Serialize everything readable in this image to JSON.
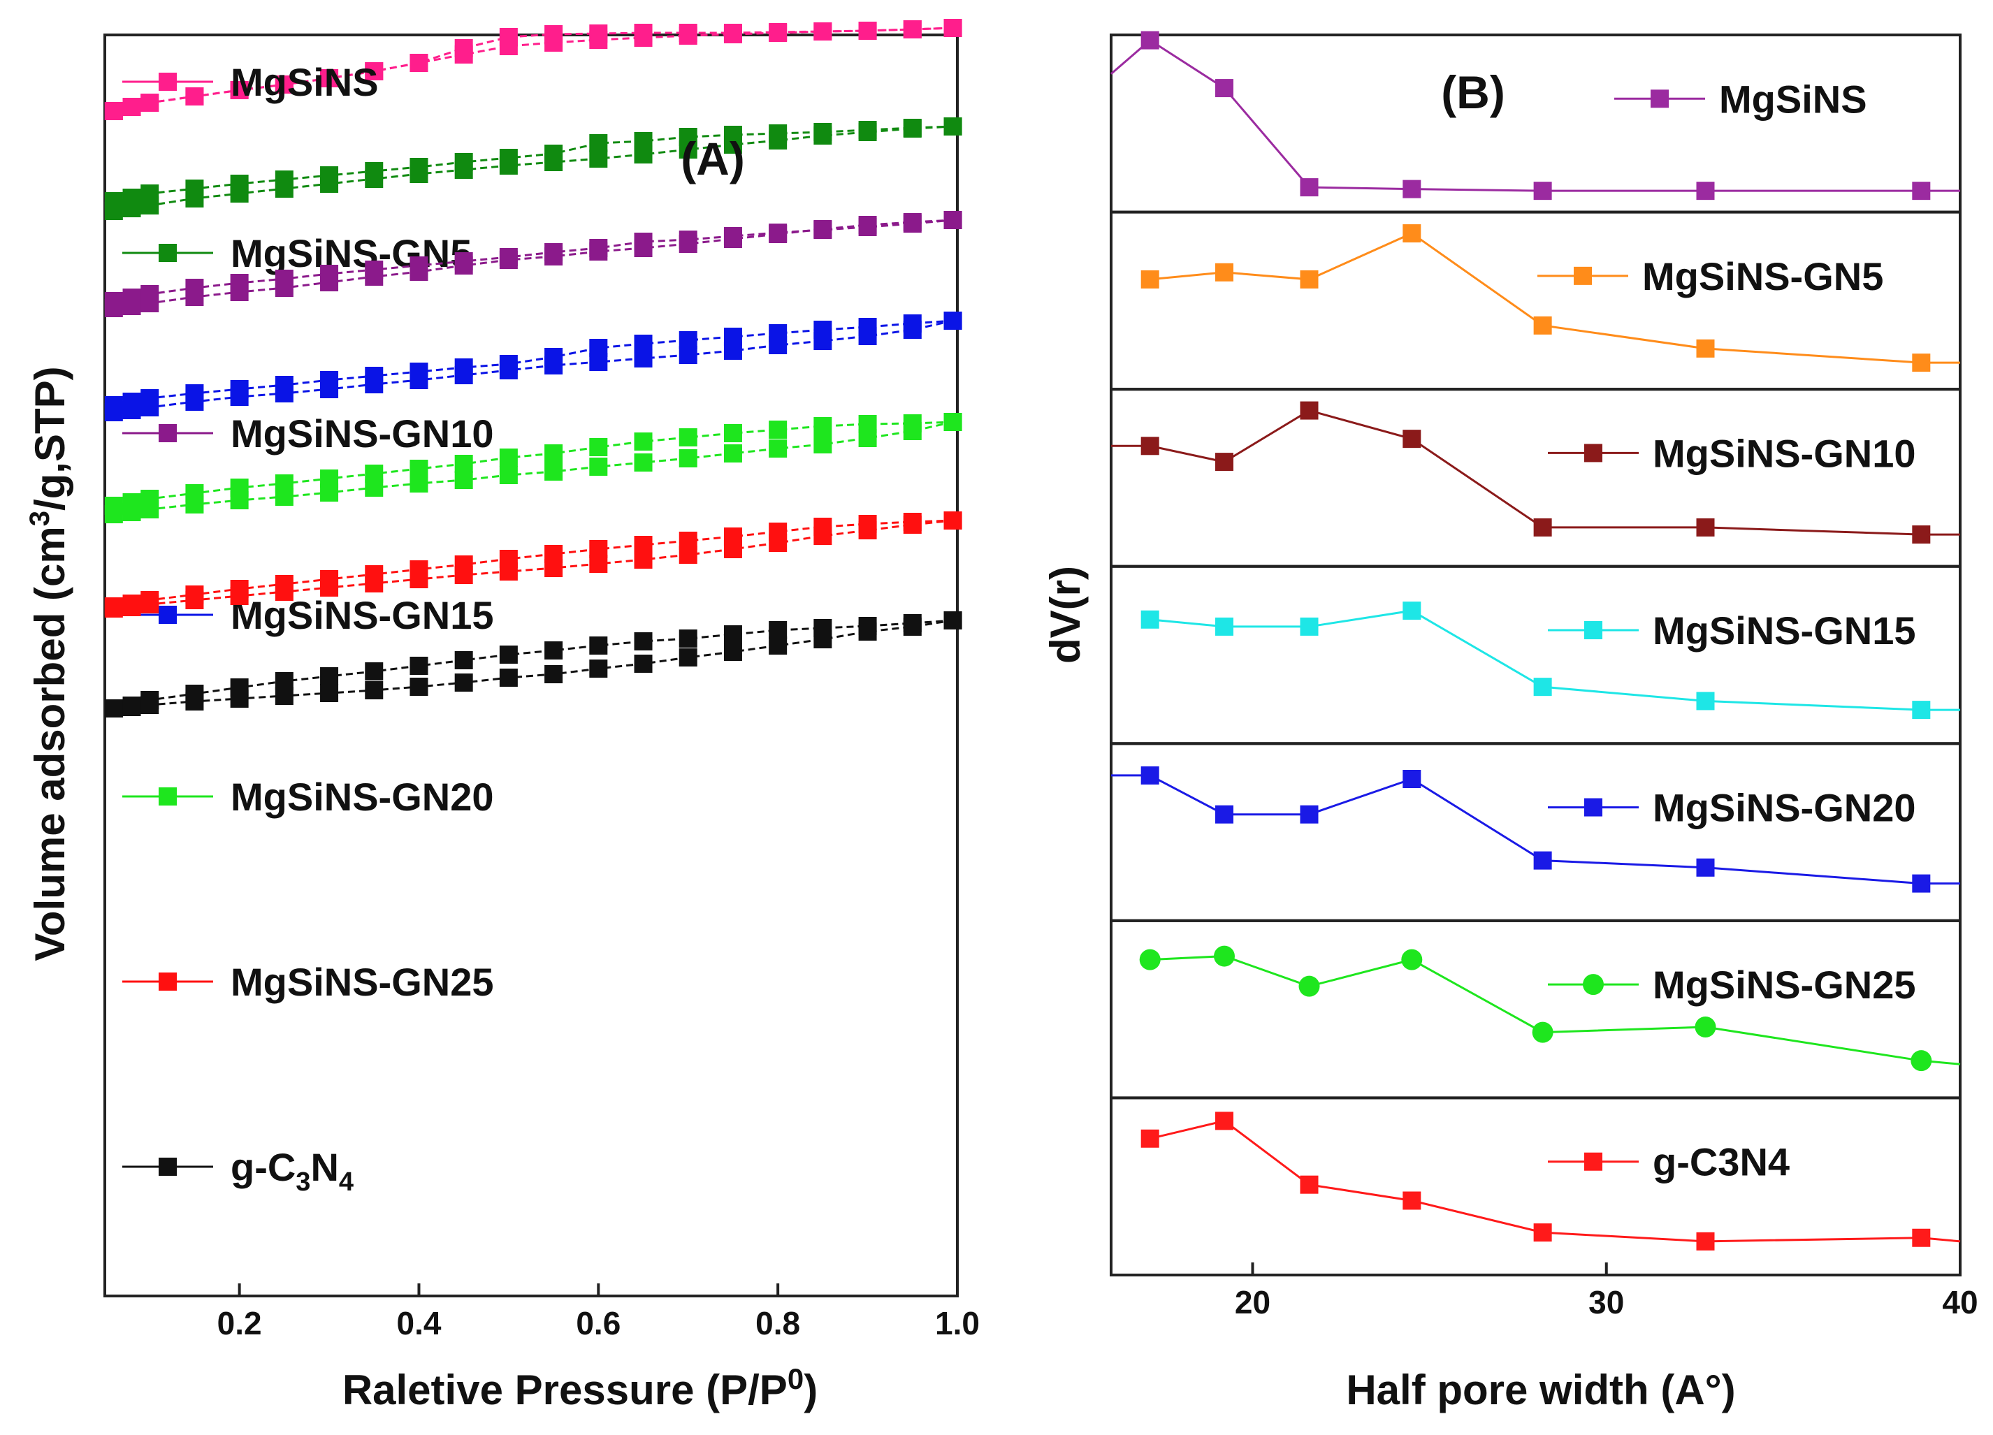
{
  "panel_a_label": "(A)",
  "panel_b_label": "(B)",
  "chart_data": [
    {
      "type": "line",
      "panel": "(A)",
      "xlabel": "Raletive Pressure (P/P0)",
      "xlabel_parts": [
        "Raletive Pressure (P/P",
        "0",
        ")"
      ],
      "ylabel": "Volume adsorbed (cm3/g,STP)",
      "ylabel_parts": [
        "Volume adsorbed (cm",
        "3",
        "/g,STP)"
      ],
      "xlim": [
        0.05,
        1.0
      ],
      "xticks": [
        0.2,
        0.4,
        0.6,
        0.8,
        1.0
      ],
      "xtick_labels": [
        "0.2",
        "0.4",
        "0.6",
        "0.8",
        "1.0"
      ],
      "y_ticks_shown": false,
      "legend_placement": "inline-left",
      "x": [
        0.06,
        0.08,
        0.1,
        0.15,
        0.2,
        0.25,
        0.3,
        0.35,
        0.4,
        0.45,
        0.5,
        0.55,
        0.6,
        0.65,
        0.7,
        0.75,
        0.8,
        0.85,
        0.9,
        0.95,
        0.995
      ],
      "series": [
        {
          "name": "MgSiNS",
          "color": "#ff1e8c",
          "marker": "square",
          "adsorption": [
            159,
            153,
            147,
            138,
            129,
            121,
            112,
            102,
            90,
            78,
            66,
            61,
            57,
            54,
            51,
            49,
            47,
            45,
            44,
            42,
            40
          ],
          "desorption": [
            159,
            153,
            147,
            138,
            129,
            121,
            112,
            102,
            90,
            69,
            53,
            49,
            48,
            47,
            47,
            47,
            46,
            45,
            44,
            42,
            40
          ]
        },
        {
          "name": "MgSiNS-GN5",
          "color": "#108a10",
          "marker": "square",
          "adsorption": [
            302,
            298,
            294,
            284,
            277,
            270,
            263,
            256,
            249,
            243,
            237,
            232,
            227,
            221,
            214,
            207,
            201,
            194,
            189,
            184,
            181
          ],
          "desorption": [
            288,
            283,
            277,
            270,
            263,
            257,
            251,
            245,
            239,
            232,
            226,
            220,
            205,
            202,
            196,
            193,
            191,
            189,
            186,
            183,
            181
          ]
        },
        {
          "name": "MgSiNS-GN10",
          "color": "#8b1a8b",
          "marker": "square",
          "adsorption": [
            441,
            438,
            434,
            425,
            418,
            412,
            404,
            396,
            389,
            380,
            372,
            367,
            360,
            355,
            349,
            342,
            335,
            328,
            322,
            318,
            315
          ],
          "desorption": [
            431,
            426,
            421,
            412,
            405,
            399,
            392,
            386,
            380,
            374,
            368,
            361,
            355,
            346,
            343,
            338,
            333,
            329,
            325,
            320,
            315
          ]
        },
        {
          "name": "MgSiNS-GN15",
          "color": "#0a14e6",
          "marker": "square",
          "adsorption": [
            590,
            587,
            583,
            575,
            568,
            563,
            557,
            550,
            544,
            537,
            530,
            523,
            518,
            513,
            508,
            502,
            494,
            488,
            481,
            472,
            459
          ],
          "desorption": [
            580,
            575,
            570,
            563,
            557,
            551,
            544,
            538,
            532,
            526,
            521,
            511,
            498,
            492,
            487,
            482,
            477,
            472,
            468,
            463,
            459
          ]
        },
        {
          "name": "MgSiNS-GN20",
          "color": "#1ee61e",
          "marker": "square",
          "adsorption": [
            736,
            733,
            729,
            722,
            716,
            711,
            705,
            698,
            692,
            687,
            680,
            675,
            668,
            662,
            656,
            649,
            642,
            636,
            627,
            617,
            604
          ],
          "desorption": [
            724,
            719,
            714,
            706,
            698,
            692,
            685,
            678,
            671,
            664,
            655,
            649,
            640,
            632,
            626,
            620,
            615,
            610,
            607,
            606,
            604
          ]
        },
        {
          "name": "MgSiNS-GN25",
          "color": "#ff1010",
          "marker": "square",
          "adsorption": [
            871,
            869,
            865,
            859,
            853,
            847,
            841,
            835,
            829,
            823,
            818,
            813,
            807,
            801,
            794,
            786,
            777,
            767,
            759,
            751,
            745
          ],
          "desorption": [
            868,
            864,
            859,
            851,
            843,
            836,
            829,
            822,
            815,
            808,
            800,
            793,
            786,
            780,
            774,
            768,
            761,
            754,
            750,
            747,
            745
          ]
        },
        {
          "name": "g-C3N4",
          "color": "#111111",
          "marker": "square",
          "name_parts": [
            "g-C",
            "3",
            "N",
            "4"
          ],
          "adsorption": [
            1014,
            1012,
            1009,
            1004,
            1000,
            996,
            992,
            988,
            983,
            977,
            970,
            965,
            957,
            950,
            941,
            933,
            924,
            915,
            904,
            897,
            888
          ],
          "desorption": [
            1014,
            1010,
            1002,
            993,
            984,
            975,
            968,
            961,
            953,
            945,
            937,
            931,
            924,
            918,
            914,
            908,
            902,
            899,
            896,
            892,
            888
          ]
        }
      ]
    },
    {
      "type": "line",
      "panel": "(B)",
      "xlabel": "Half pore width (A°)",
      "ylabel": "dV(r)",
      "xlim": [
        16,
        40
      ],
      "xticks": [
        20,
        30,
        40
      ],
      "xtick_labels": [
        "20",
        "30",
        "40"
      ],
      "y_ticks_shown": false,
      "stacked_subplots": 7,
      "legend_placement": "top-right of each subplot",
      "x": [
        17.1,
        19.2,
        21.6,
        24.5,
        28.2,
        32.8,
        38.9
      ],
      "series": [
        {
          "name": "MgSiNS",
          "color": "#9b2ba0",
          "marker": "square",
          "values": [
            0.97,
            0.7,
            0.14,
            0.13,
            0.12,
            0.12,
            0.12
          ],
          "start_y": 0.78,
          "end_y": 0.12
        },
        {
          "name": "MgSiNS-GN5",
          "color": "#ff8c1a",
          "marker": "square",
          "values": [
            0.62,
            0.66,
            0.62,
            0.88,
            0.36,
            0.23,
            0.15
          ],
          "start_y": null,
          "end_y": 0.15
        },
        {
          "name": "MgSiNS-GN10",
          "color": "#8b1a1a",
          "marker": "square",
          "values": [
            0.68,
            0.59,
            0.88,
            0.72,
            0.22,
            0.22,
            0.18
          ],
          "start_y": 0.68,
          "end_y": 0.18
        },
        {
          "name": "MgSiNS-GN15",
          "color": "#1ee6e6",
          "marker": "square",
          "values": [
            0.7,
            0.66,
            0.66,
            0.75,
            0.32,
            0.24,
            0.19
          ],
          "start_y": null,
          "end_y": 0.19
        },
        {
          "name": "MgSiNS-GN20",
          "color": "#1a1ae6",
          "marker": "square",
          "values": [
            0.82,
            0.6,
            0.6,
            0.8,
            0.34,
            0.3,
            0.21
          ],
          "start_y": 0.82,
          "end_y": 0.21
        },
        {
          "name": "MgSiNS-GN25",
          "color": "#1ee61e",
          "marker": "circle",
          "values": [
            0.78,
            0.8,
            0.63,
            0.78,
            0.37,
            0.4,
            0.21
          ],
          "start_y": null,
          "end_y": 0.19
        },
        {
          "name": "g-C3N4",
          "color": "#ff1a1a",
          "marker": "square",
          "values": [
            0.77,
            0.87,
            0.51,
            0.42,
            0.24,
            0.19,
            0.21
          ],
          "start_y": null,
          "end_y": 0.19
        }
      ]
    }
  ]
}
